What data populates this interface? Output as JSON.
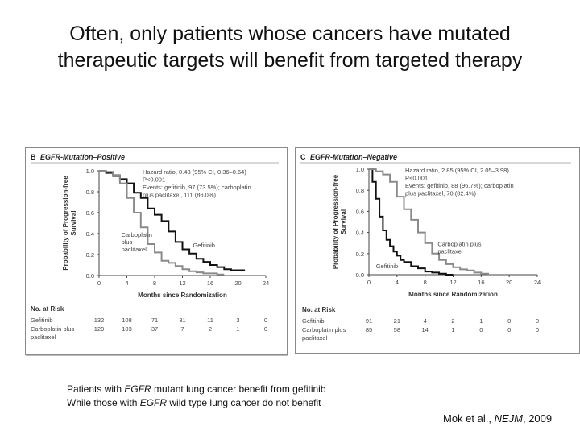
{
  "slide": {
    "title_line1": "Often, only patients whose cancers have mutated",
    "title_line2": "therapeutic targets will benefit from targeted therapy",
    "caption_line1_pre": "Patients with ",
    "caption_line1_em": "EGFR",
    "caption_line1_post": " mutant lung cancer benefit from gefitinib",
    "caption_line2_pre": "While those with ",
    "caption_line2_em": "EGFR",
    "caption_line2_post": " wild type lung cancer do not benefit",
    "citation_pre": "Mok et al., ",
    "citation_em": "NEJM",
    "citation_post": ", 2009"
  },
  "chart_data": [
    {
      "type": "line",
      "panel_letter": "B",
      "title": "EGFR-Mutation–Positive",
      "xlabel": "Months since Randomization",
      "ylabel_line1": "Probability of Progression-free",
      "ylabel_line2": "Survival",
      "xlim": [
        0,
        24
      ],
      "ylim": [
        0,
        1.0
      ],
      "x_ticks": [
        "0",
        "4",
        "8",
        "12",
        "16",
        "20",
        "24"
      ],
      "y_ticks": [
        "0.0",
        "0.2",
        "0.4",
        "0.6",
        "0.8",
        "1.0"
      ],
      "annotation_lines": [
        "Hazard ratio, 0.48 (95% CI, 0.36–0.64)",
        "P<0.001",
        "Events: gefitinib, 97 (73.5%); carboplatin",
        "plus paclitaxel, 111 (86.0%)"
      ],
      "series": [
        {
          "name": "Gefitinib",
          "color": "#111111",
          "x": [
            0,
            1,
            2,
            3,
            4,
            5,
            6,
            7,
            8,
            9,
            10,
            11,
            12,
            13,
            14,
            15,
            16,
            17,
            18,
            19,
            20,
            21
          ],
          "y": [
            1.0,
            0.98,
            0.95,
            0.92,
            0.88,
            0.79,
            0.74,
            0.64,
            0.58,
            0.52,
            0.42,
            0.32,
            0.25,
            0.21,
            0.16,
            0.13,
            0.1,
            0.08,
            0.06,
            0.05,
            0.05,
            0.05
          ]
        },
        {
          "name": "Carboplatin plus paclitaxel",
          "color": "#8a8a8a",
          "x": [
            0,
            1,
            2,
            3,
            4,
            5,
            6,
            7,
            8,
            9,
            10,
            11,
            12,
            13,
            14,
            15,
            16,
            17,
            18
          ],
          "y": [
            1.0,
            0.99,
            0.96,
            0.88,
            0.74,
            0.6,
            0.46,
            0.3,
            0.22,
            0.14,
            0.12,
            0.09,
            0.06,
            0.04,
            0.03,
            0.02,
            0.02,
            0.01,
            0.01
          ]
        }
      ],
      "curve_labels": [
        {
          "series": 1,
          "lines": [
            "Carboplatin",
            "plus",
            "paclitaxel"
          ],
          "x": 3.2,
          "y": 0.37
        },
        {
          "series": 0,
          "lines": [
            "Gefitinib"
          ],
          "x": 13.5,
          "y": 0.27
        }
      ],
      "risk_title": "No. at Risk",
      "risk_rows": [
        {
          "label_lines": [
            "Gefitinib"
          ],
          "values": [
            "132",
            "108",
            "71",
            "31",
            "11",
            "3",
            "0"
          ]
        },
        {
          "label_lines": [
            "Carboplatin plus",
            "paclitaxel"
          ],
          "values": [
            "129",
            "103",
            "37",
            "7",
            "2",
            "1",
            "0"
          ]
        }
      ]
    },
    {
      "type": "line",
      "panel_letter": "C",
      "title": "EGFR-Mutation–Negative",
      "xlabel": "Months since Randomization",
      "ylabel_line1": "Probability of Progression-free",
      "ylabel_line2": "Survival",
      "xlim": [
        0,
        24
      ],
      "ylim": [
        0,
        1.0
      ],
      "x_ticks": [
        "0",
        "4",
        "8",
        "12",
        "16",
        "20",
        "24"
      ],
      "y_ticks": [
        "0.0",
        "0.2",
        "0.4",
        "0.6",
        "0.8",
        "1.0"
      ],
      "annotation_lines": [
        "Hazard ratio, 2.85 (95% CI, 2.05–3.98)",
        "P<0.001",
        "Events: gefitinib, 88 (96.7%); carboplatin",
        "plus paclitaxel, 70 (82.4%)"
      ],
      "series": [
        {
          "name": "Gefitinib",
          "color": "#111111",
          "x": [
            0,
            0.5,
            1,
            1.5,
            2,
            2.5,
            3,
            3.5,
            4,
            4.5,
            5,
            6,
            7,
            8,
            9,
            10,
            11,
            12
          ],
          "y": [
            1.0,
            0.88,
            0.72,
            0.55,
            0.42,
            0.33,
            0.27,
            0.22,
            0.18,
            0.14,
            0.12,
            0.08,
            0.06,
            0.03,
            0.02,
            0.01,
            0.0,
            0.0
          ]
        },
        {
          "name": "Carboplatin plus paclitaxel",
          "color": "#8a8a8a",
          "x": [
            0,
            1,
            2,
            3,
            4,
            5,
            6,
            7,
            8,
            9,
            10,
            11,
            12,
            13,
            14,
            15,
            16,
            17
          ],
          "y": [
            1.0,
            0.98,
            0.95,
            0.88,
            0.74,
            0.62,
            0.52,
            0.4,
            0.3,
            0.2,
            0.14,
            0.1,
            0.07,
            0.05,
            0.04,
            0.02,
            0.01,
            0.0
          ]
        }
      ],
      "curve_labels": [
        {
          "series": 1,
          "lines": [
            "Carboplatin plus",
            "paclitaxel"
          ],
          "x": 9.8,
          "y": 0.27
        },
        {
          "series": 0,
          "lines": [
            "Gefitinib"
          ],
          "x": 1.0,
          "y": 0.06
        }
      ],
      "risk_title": "No. at Risk",
      "risk_rows": [
        {
          "label_lines": [
            "Gefitinib"
          ],
          "values": [
            "91",
            "21",
            "4",
            "2",
            "1",
            "0",
            "0"
          ]
        },
        {
          "label_lines": [
            "Carboplatin plus",
            "paclitaxel"
          ],
          "values": [
            "85",
            "58",
            "14",
            "1",
            "0",
            "0",
            "0"
          ]
        }
      ]
    }
  ]
}
